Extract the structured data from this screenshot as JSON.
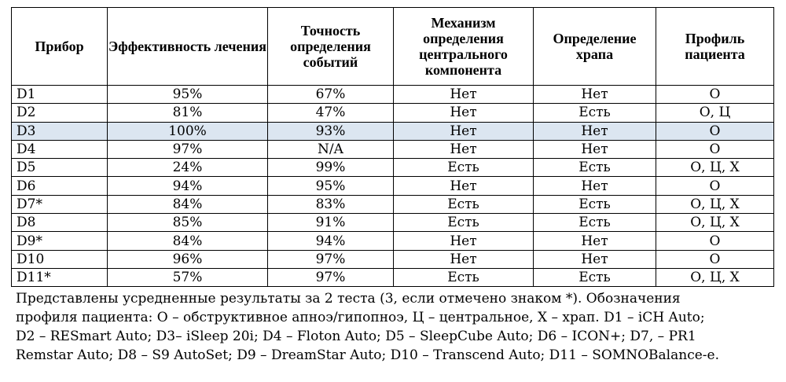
{
  "table": {
    "headers": [
      "Прибор",
      "Эффективность лечения",
      "Точность определения событий",
      "Механизм определения центрального компонента",
      "Определение храпа",
      "Профиль пациента"
    ],
    "rows": [
      [
        "D1",
        "95%",
        "67%",
        "Нет",
        "Нет",
        "О"
      ],
      [
        "D2",
        "81%",
        "47%",
        "Нет",
        "Есть",
        "О, Ц"
      ],
      [
        "D3",
        "100%",
        "93%",
        "Нет",
        "Нет",
        "О"
      ],
      [
        "D4",
        "97%",
        "N/A",
        "Нет",
        "Нет",
        "О"
      ],
      [
        "D5",
        "24%",
        "99%",
        "Есть",
        "Есть",
        "О, Ц, Х"
      ],
      [
        "D6",
        "94%",
        "95%",
        "Нет",
        "Нет",
        "О"
      ],
      [
        "D7*",
        "84%",
        "83%",
        "Есть",
        "Есть",
        "О, Ц, Х"
      ],
      [
        "D8",
        "85%",
        "91%",
        "Есть",
        "Есть",
        "О, Ц, Х"
      ],
      [
        "D9*",
        "84%",
        "94%",
        "Нет",
        "Нет",
        "О"
      ],
      [
        "D10",
        "96%",
        "97%",
        "Нет",
        "Нет",
        "О"
      ],
      [
        "D11*",
        "57%",
        "97%",
        "Есть",
        "Есть",
        "О, Ц, Х"
      ]
    ],
    "highlight_color": "#dce6f1"
  },
  "footnote": {
    "line1": "Представлены усредненные результаты за 2 теста (3, если отмечено знаком *).  Обозначения",
    "line2": "профиля пациента: О – обструктивное апноэ/гипопноэ, Ц – центральное, Х – храп. D1 – iCH Auto;",
    "line3": "D2 – RESmart Auto; D3– iSleep 20i; D4 – Floton Auto; D5 – SleepCube Auto; D6 – ICON+; D7, – PR1",
    "line4": "Remstar Auto; D8 – S9 AutoSet; D9 – DreamStar Auto; D10 – Transcend Auto; D11 – SOMNOBalance-e."
  }
}
